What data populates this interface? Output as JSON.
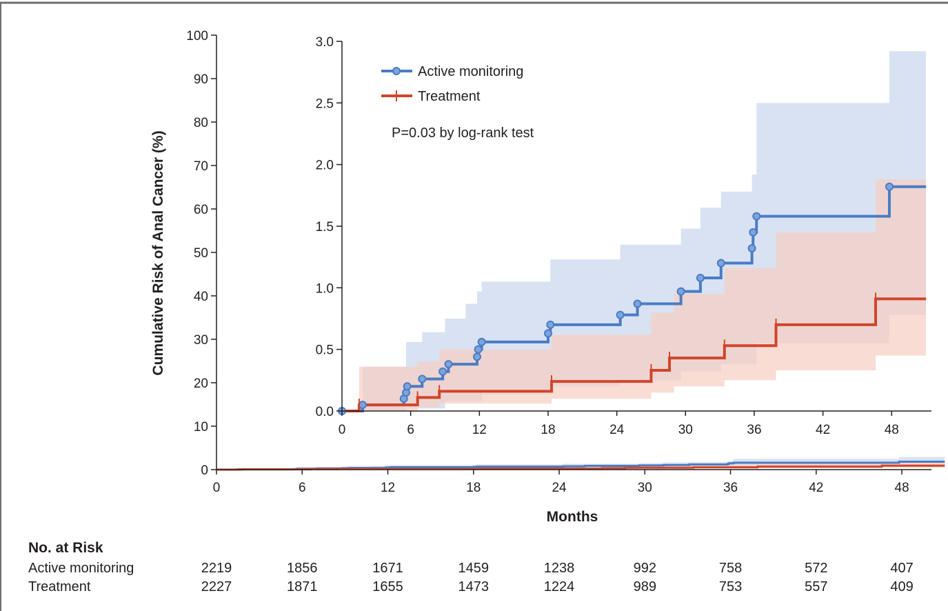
{
  "chart_data": {
    "type": "line",
    "subtype": "kaplan-meier cumulative incidence with inset",
    "title": "",
    "xlabel": "Months",
    "ylabel": "Cumulative Risk of Anal Cancer (%)",
    "xlim": [
      0,
      51
    ],
    "ylim": [
      0,
      100
    ],
    "x_ticks": [
      0,
      6,
      12,
      18,
      24,
      30,
      36,
      42,
      48
    ],
    "y_ticks": [
      0,
      10,
      20,
      30,
      40,
      50,
      60,
      70,
      80,
      90,
      100
    ],
    "colors": {
      "active": "#4a7cc4",
      "treatment": "#d0452b",
      "active_band": "#d6e0f2",
      "treatment_band": "#f6cfc2"
    },
    "series": [
      {
        "name": "Active monitoring",
        "color": "#4a7cc4",
        "marker": "circle",
        "steps": [
          [
            0,
            0
          ],
          [
            1.8,
            0.05
          ],
          [
            5.4,
            0.1
          ],
          [
            5.6,
            0.15
          ],
          [
            5.7,
            0.2
          ],
          [
            7,
            0.26
          ],
          [
            8.8,
            0.32
          ],
          [
            9.3,
            0.38
          ],
          [
            11.8,
            0.44
          ],
          [
            11.9,
            0.5
          ],
          [
            12.2,
            0.56
          ],
          [
            18,
            0.63
          ],
          [
            18.2,
            0.7
          ],
          [
            24.3,
            0.78
          ],
          [
            25.8,
            0.87
          ],
          [
            29.6,
            0.97
          ],
          [
            31.3,
            1.08
          ],
          [
            33.1,
            1.2
          ],
          [
            35.8,
            1.32
          ],
          [
            35.9,
            1.45
          ],
          [
            36.2,
            1.58
          ],
          [
            47.8,
            1.82
          ]
        ],
        "ci_upper": [
          [
            0,
            0
          ],
          [
            1.8,
            0.36
          ],
          [
            5.6,
            0.56
          ],
          [
            7,
            0.64
          ],
          [
            9,
            0.75
          ],
          [
            10.8,
            0.87
          ],
          [
            11.8,
            0.97
          ],
          [
            12.2,
            1.05
          ],
          [
            18.2,
            1.23
          ],
          [
            24.3,
            1.35
          ],
          [
            29.6,
            1.48
          ],
          [
            31.3,
            1.65
          ],
          [
            33.1,
            1.78
          ],
          [
            35.8,
            1.92
          ],
          [
            36.2,
            2.5
          ],
          [
            47.8,
            2.92
          ]
        ],
        "ci_lower": [
          [
            0,
            0
          ],
          [
            5.6,
            0.02
          ],
          [
            9,
            0.08
          ],
          [
            12.2,
            0.15
          ],
          [
            18.2,
            0.2
          ],
          [
            24.3,
            0.25
          ],
          [
            29.6,
            0.32
          ],
          [
            33.1,
            0.38
          ],
          [
            36.2,
            0.55
          ],
          [
            47.8,
            0.78
          ]
        ]
      },
      {
        "name": "Treatment",
        "color": "#d0452b",
        "marker": "tick",
        "steps": [
          [
            0,
            0
          ],
          [
            1.5,
            0.05
          ],
          [
            6.6,
            0.11
          ],
          [
            8.5,
            0.16
          ],
          [
            18.3,
            0.24
          ],
          [
            27,
            0.33
          ],
          [
            28.6,
            0.43
          ],
          [
            33.4,
            0.53
          ],
          [
            37.9,
            0.7
          ],
          [
            46.6,
            0.91
          ]
        ],
        "ci_upper": [
          [
            0,
            0
          ],
          [
            1.5,
            0.36
          ],
          [
            6.6,
            0.4
          ],
          [
            8.5,
            0.5
          ],
          [
            18.3,
            0.62
          ],
          [
            27,
            0.8
          ],
          [
            29,
            0.95
          ],
          [
            33.4,
            1.16
          ],
          [
            37.9,
            1.45
          ],
          [
            46.6,
            1.88
          ]
        ],
        "ci_lower": [
          [
            0,
            0
          ],
          [
            6.6,
            0.03
          ],
          [
            8.5,
            0.06
          ],
          [
            18.3,
            0.1
          ],
          [
            27,
            0.15
          ],
          [
            29,
            0.2
          ],
          [
            33.4,
            0.25
          ],
          [
            37.9,
            0.33
          ],
          [
            46.6,
            0.45
          ]
        ]
      }
    ],
    "inset": {
      "xlim": [
        0,
        51
      ],
      "ylim": [
        0,
        3.0
      ],
      "x_ticks": [
        0,
        6,
        12,
        18,
        24,
        30,
        36,
        42,
        48
      ],
      "y_ticks": [
        "0.0",
        "0.5",
        "1.0",
        "1.5",
        "2.0",
        "2.5",
        "3.0"
      ],
      "legend": [
        "Active monitoring",
        "Treatment"
      ],
      "annotation": "P=0.03 by log-rank test"
    },
    "number_at_risk": {
      "header": "No. at Risk",
      "rows": [
        {
          "label": "Active monitoring",
          "values": [
            "2219",
            "1856",
            "1671",
            "1459",
            "1238",
            "992",
            "758",
            "572",
            "407"
          ]
        },
        {
          "label": "Treatment",
          "values": [
            "2227",
            "1871",
            "1655",
            "1473",
            "1224",
            "989",
            "753",
            "557",
            "409"
          ]
        }
      ]
    }
  }
}
